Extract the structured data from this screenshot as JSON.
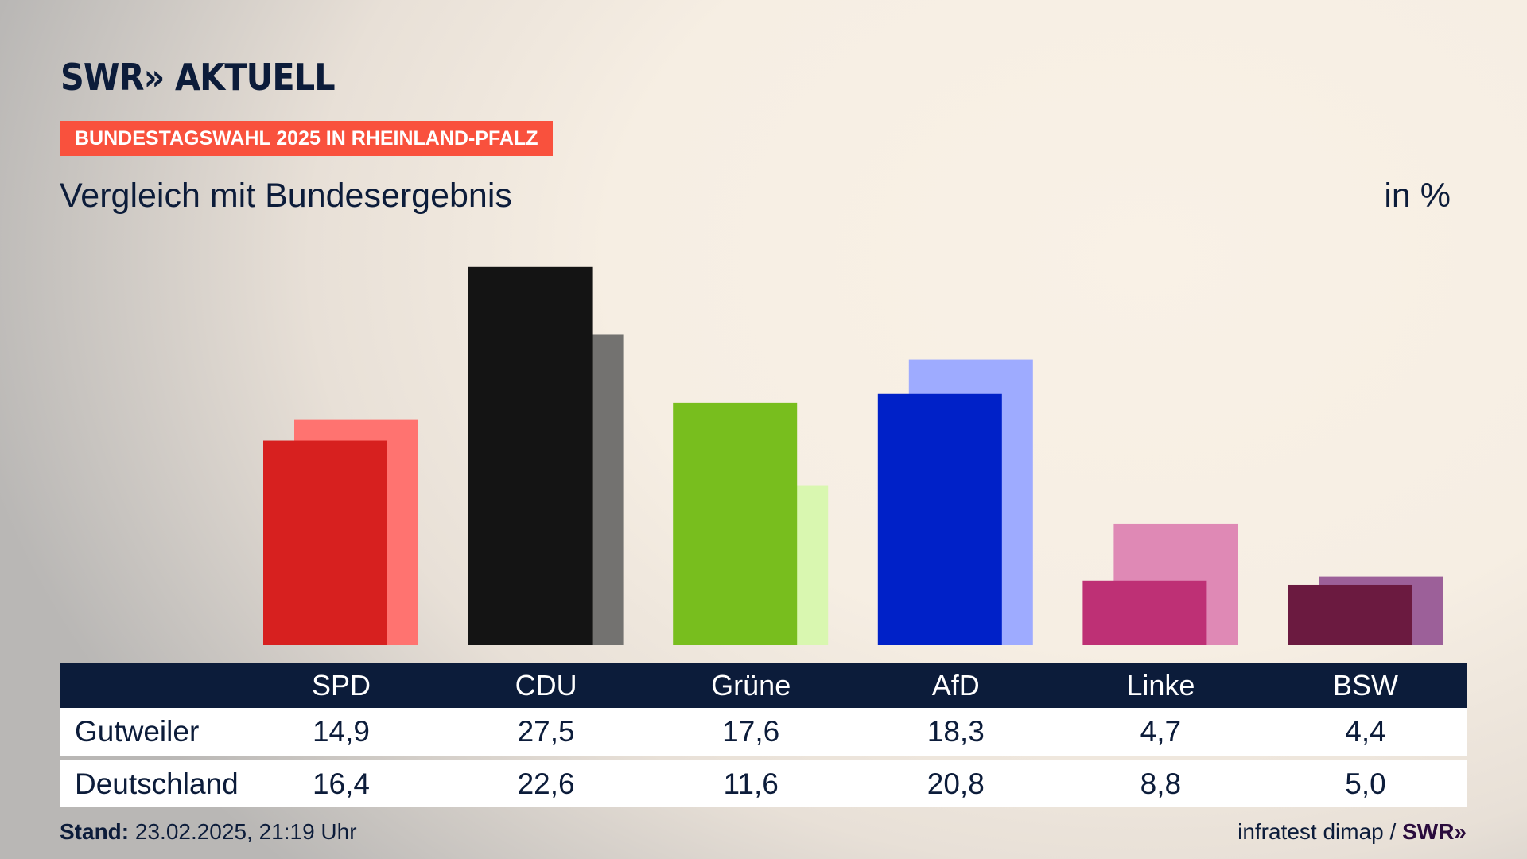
{
  "header": {
    "logo": "SWR» AKTUELL",
    "tag": "BUNDESTAGSWAHL 2025 IN RHEINLAND-PFALZ",
    "subtitle": "Vergleich mit Bundesergebnis",
    "unit": "in %"
  },
  "chart_data": {
    "type": "bar",
    "title": "Vergleich mit Bundesergebnis",
    "ylabel": "in %",
    "ylim": [
      0,
      27.5
    ],
    "categories": [
      "SPD",
      "CDU",
      "Grüne",
      "AfD",
      "Linke",
      "BSW"
    ],
    "series": [
      {
        "name": "Gutweiler",
        "values": [
          14.9,
          27.5,
          17.6,
          18.3,
          4.7,
          4.4
        ],
        "labels": [
          "14,9",
          "27,5",
          "17,6",
          "18,3",
          "4,7",
          "4,4"
        ],
        "colors": [
          "#d7201f",
          "#141414",
          "#78be1e",
          "#0021c8",
          "#be3075",
          "#6b1a40"
        ]
      },
      {
        "name": "Deutschland",
        "values": [
          16.4,
          22.6,
          11.6,
          20.8,
          8.8,
          5.0
        ],
        "labels": [
          "16,4",
          "22,6",
          "11,6",
          "20,8",
          "8,8",
          "5,0"
        ],
        "colors": [
          "#ff7370",
          "#737270",
          "#d9f7b0",
          "#9eabff",
          "#df89b5",
          "#9c6099"
        ]
      }
    ]
  },
  "footer": {
    "stand_label": "Stand:",
    "stand_value": "23.02.2025, 21:19 Uhr",
    "source": "infratest dimap / ",
    "source_logo": "SWR»"
  }
}
